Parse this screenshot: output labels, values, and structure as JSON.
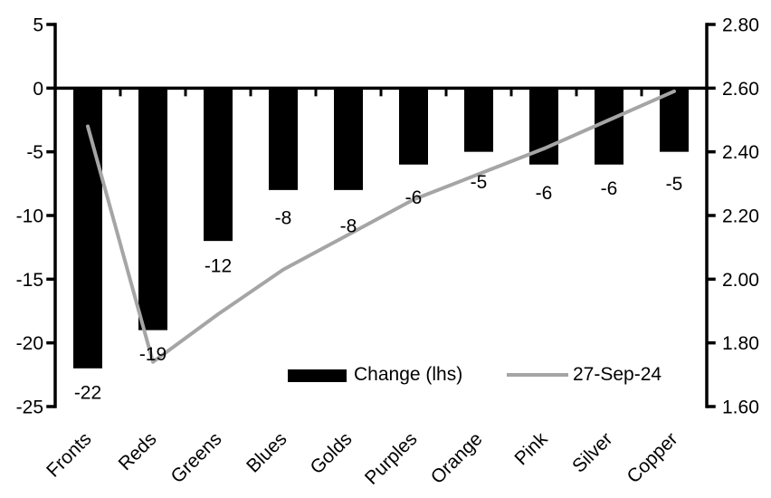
{
  "chart_data": {
    "type": "bar",
    "subtype": "dual-axis-bar-and-line",
    "title": "",
    "categories": [
      "Fronts",
      "Reds",
      "Greens",
      "Blues",
      "Golds",
      "Purples",
      "Orange",
      "Pink",
      "Silver",
      "Copper"
    ],
    "series": [
      {
        "name": "Change (lhs)",
        "type": "bar",
        "axis": "left",
        "color": "#000000",
        "values": [
          -22,
          -19,
          -12,
          -8,
          -8,
          -6,
          -5,
          -6,
          -6,
          -5
        ],
        "data_labels": [
          "-22",
          "-19",
          "-12",
          "-8",
          "-8",
          "-6",
          "-5",
          "-6",
          "-6",
          "-5"
        ]
      },
      {
        "name": "27-Sep-24",
        "type": "line",
        "axis": "right",
        "color": "#A5A5A5",
        "values": [
          2.48,
          1.74,
          1.89,
          2.03,
          2.14,
          2.25,
          2.33,
          2.41,
          2.5,
          2.59
        ]
      }
    ],
    "left_axis": {
      "min": -25,
      "max": 5,
      "step": 5,
      "tick_labels": [
        "5",
        "0",
        "-5",
        "-10",
        "-15",
        "-20",
        "-25"
      ]
    },
    "right_axis": {
      "min": 1.6,
      "max": 2.8,
      "step": 0.2,
      "tick_labels": [
        "2.80",
        "2.60",
        "2.40",
        "2.20",
        "2.00",
        "1.80",
        "1.60"
      ]
    },
    "legend": {
      "position": "inside-bottom",
      "entries": [
        {
          "label": "Change (lhs)",
          "swatch": "bar",
          "color": "#000000"
        },
        {
          "label": "27-Sep-24",
          "swatch": "line",
          "color": "#A5A5A5"
        }
      ]
    },
    "grid": false,
    "background": "#FFFFFF",
    "text_color": "#000000",
    "axis_color": "#000000"
  }
}
